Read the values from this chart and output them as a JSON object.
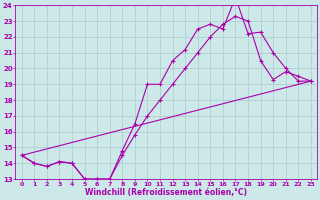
{
  "xlabel": "Windchill (Refroidissement éolien,°C)",
  "bg_color": "#cce8e8",
  "grid_color": "#aacccc",
  "line_color": "#aa00aa",
  "xlim": [
    -0.5,
    23.5
  ],
  "ylim": [
    13,
    24
  ],
  "xticks": [
    0,
    1,
    2,
    3,
    4,
    5,
    6,
    7,
    8,
    9,
    10,
    11,
    12,
    13,
    14,
    15,
    16,
    17,
    18,
    19,
    20,
    21,
    22,
    23
  ],
  "yticks": [
    13,
    14,
    15,
    16,
    17,
    18,
    19,
    20,
    21,
    22,
    23,
    24
  ],
  "line1_x": [
    0,
    1,
    2,
    3,
    4,
    5,
    6,
    7,
    8,
    9,
    10,
    11,
    12,
    13,
    14,
    15,
    16,
    17,
    18,
    19,
    20,
    21,
    22,
    23
  ],
  "line1_y": [
    14.5,
    14.0,
    13.8,
    14.1,
    14.0,
    13.0,
    13.0,
    13.0,
    14.8,
    16.5,
    19.0,
    19.0,
    20.5,
    21.2,
    22.5,
    22.8,
    22.5,
    24.5,
    22.2,
    22.3,
    21.0,
    20.0,
    19.2,
    19.2
  ],
  "line2_x": [
    0,
    1,
    2,
    3,
    4,
    5,
    6,
    7,
    8,
    9,
    10,
    11,
    12,
    13,
    14,
    15,
    16,
    17,
    18,
    19,
    20,
    21,
    22,
    23
  ],
  "line2_y": [
    14.5,
    14.0,
    13.8,
    14.1,
    14.0,
    13.0,
    13.0,
    13.0,
    14.5,
    15.8,
    17.0,
    18.0,
    19.0,
    20.0,
    21.0,
    22.0,
    22.8,
    23.3,
    23.0,
    20.5,
    19.3,
    19.8,
    19.5,
    19.2
  ],
  "line3_x": [
    0,
    23
  ],
  "line3_y": [
    14.5,
    19.2
  ]
}
